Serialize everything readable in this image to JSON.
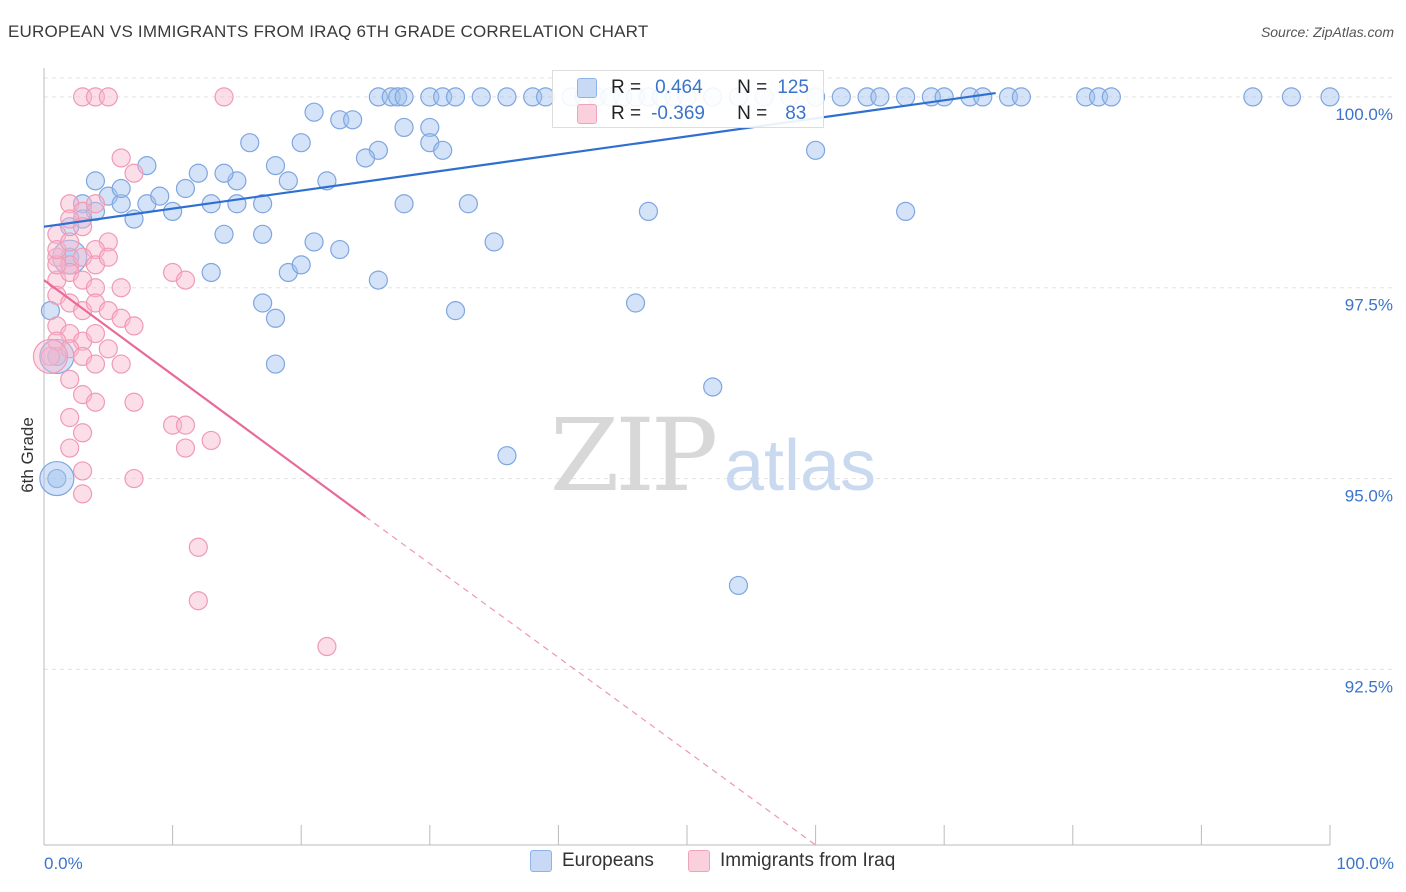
{
  "title": "EUROPEAN VS IMMIGRANTS FROM IRAQ 6TH GRADE CORRELATION CHART",
  "source": "Source: ZipAtlas.com",
  "watermark": {
    "zip": "ZIP",
    "atlas": "atlas"
  },
  "legend_top": [
    {
      "r_label": "R =",
      "r_value": "0.464",
      "n_label": "N =",
      "n_value": "125",
      "color": "#8fb3e8",
      "fill": "#c7d9f5"
    },
    {
      "r_label": "R =",
      "r_value": "-0.369",
      "n_label": "N =",
      "n_value": "83",
      "color": "#f0a3bc",
      "fill": "#fbd0dd"
    }
  ],
  "legend_bottom": [
    {
      "label": "Europeans",
      "color": "#8fb3e8",
      "fill": "#c7d9f5"
    },
    {
      "label": "Immigrants from Iraq",
      "color": "#f0a3bc",
      "fill": "#fbd0dd"
    }
  ],
  "chart_data": {
    "type": "scatter",
    "title": "EUROPEAN VS IMMIGRANTS FROM IRAQ 6TH GRADE CORRELATION CHART",
    "xlabel": "",
    "ylabel": "6th Grade",
    "xlim": [
      0,
      100
    ],
    "ylim": [
      90.2,
      100.3
    ],
    "x_tick_labels": [
      "0.0%",
      "100.0%"
    ],
    "y_ticks": [
      92.5,
      95.0,
      97.5,
      100.0
    ],
    "y_tick_labels": [
      "92.5%",
      "95.0%",
      "97.5%",
      "100.0%"
    ],
    "grid": true,
    "series": [
      {
        "name": "Europeans",
        "stroke": "#7ea6e0",
        "fill": "rgba(160,192,238,0.45)",
        "trend": {
          "x": [
            0,
            74
          ],
          "y": [
            98.3,
            100.05
          ],
          "color": "#2f6fd1",
          "dashed_to": null
        },
        "points": [
          [
            26,
            100
          ],
          [
            27,
            100
          ],
          [
            27.5,
            100
          ],
          [
            28,
            100
          ],
          [
            30,
            100
          ],
          [
            31,
            100
          ],
          [
            32,
            100
          ],
          [
            34,
            100
          ],
          [
            36,
            100
          ],
          [
            38,
            100
          ],
          [
            39,
            100
          ],
          [
            41,
            100
          ],
          [
            42,
            100
          ],
          [
            43,
            100
          ],
          [
            44,
            100
          ],
          [
            45,
            100
          ],
          [
            46,
            100
          ],
          [
            47,
            100
          ],
          [
            48,
            100
          ],
          [
            49,
            100
          ],
          [
            50,
            100
          ],
          [
            52,
            100
          ],
          [
            54,
            100
          ],
          [
            56,
            100
          ],
          [
            58,
            100
          ],
          [
            60,
            100
          ],
          [
            62,
            100
          ],
          [
            64,
            100
          ],
          [
            65,
            100
          ],
          [
            67,
            100
          ],
          [
            69,
            100
          ],
          [
            70,
            100
          ],
          [
            72,
            100
          ],
          [
            73,
            100
          ],
          [
            75,
            100
          ],
          [
            76,
            100
          ],
          [
            81,
            100
          ],
          [
            82,
            100
          ],
          [
            83,
            100
          ],
          [
            94,
            100
          ],
          [
            97,
            100
          ],
          [
            100,
            100
          ],
          [
            21,
            99.8
          ],
          [
            23,
            99.7
          ],
          [
            24,
            99.7
          ],
          [
            28,
            99.6
          ],
          [
            30,
            99.6
          ],
          [
            16,
            99.4
          ],
          [
            20,
            99.4
          ],
          [
            26,
            99.3
          ],
          [
            30,
            99.4
          ],
          [
            31,
            99.3
          ],
          [
            25,
            99.2
          ],
          [
            60,
            99.3
          ],
          [
            8,
            99.1
          ],
          [
            12,
            99.0
          ],
          [
            15,
            98.9
          ],
          [
            19,
            98.9
          ],
          [
            22,
            98.9
          ],
          [
            14,
            99.0
          ],
          [
            18,
            99.1
          ],
          [
            4,
            98.9
          ],
          [
            5,
            98.7
          ],
          [
            8,
            98.6
          ],
          [
            9,
            98.7
          ],
          [
            10,
            98.5
          ],
          [
            11,
            98.8
          ],
          [
            13,
            98.6
          ],
          [
            15,
            98.6
          ],
          [
            17,
            98.6
          ],
          [
            3,
            98.6
          ],
          [
            4,
            98.5
          ],
          [
            6,
            98.6
          ],
          [
            7,
            98.4
          ],
          [
            2,
            98.3
          ],
          [
            3,
            98.4
          ],
          [
            28,
            98.6
          ],
          [
            33,
            98.6
          ],
          [
            47,
            98.5
          ],
          [
            67,
            98.5
          ],
          [
            6,
            98.8
          ],
          [
            2,
            97.9
          ],
          [
            14,
            98.2
          ],
          [
            17,
            98.2
          ],
          [
            21,
            98.1
          ],
          [
            23,
            98.0
          ],
          [
            35,
            98.1
          ],
          [
            13,
            97.7
          ],
          [
            19,
            97.7
          ],
          [
            20,
            97.8
          ],
          [
            26,
            97.6
          ],
          [
            17,
            97.3
          ],
          [
            18,
            97.1
          ],
          [
            32,
            97.2
          ],
          [
            46,
            97.3
          ],
          [
            18,
            96.5
          ],
          [
            52,
            96.2
          ],
          [
            36,
            95.3
          ],
          [
            54,
            93.6
          ],
          [
            1,
            95.0
          ],
          [
            1,
            96.6
          ],
          [
            0.5,
            97.2
          ]
        ],
        "big_points": [
          [
            1,
            95.0
          ],
          [
            1,
            96.6
          ],
          [
            2,
            97.9
          ]
        ]
      },
      {
        "name": "Immigrants from Iraq",
        "stroke": "#f09ab5",
        "fill": "rgba(248,182,204,0.45)",
        "trend": {
          "x": [
            0,
            25
          ],
          "y": [
            97.6,
            94.5
          ],
          "color": "#e8699a",
          "dashed_to": [
            60,
            90.2
          ]
        },
        "points": [
          [
            3,
            100
          ],
          [
            4,
            100
          ],
          [
            5,
            100
          ],
          [
            14,
            100
          ],
          [
            6,
            99.2
          ],
          [
            7,
            99.0
          ],
          [
            2,
            98.6
          ],
          [
            3,
            98.5
          ],
          [
            4,
            98.6
          ],
          [
            2,
            98.4
          ],
          [
            3,
            98.3
          ],
          [
            1,
            98.2
          ],
          [
            5,
            98.1
          ],
          [
            4,
            98.0
          ],
          [
            1,
            97.9
          ],
          [
            2,
            97.8
          ],
          [
            3,
            97.9
          ],
          [
            4,
            97.8
          ],
          [
            5,
            97.9
          ],
          [
            1,
            97.6
          ],
          [
            2,
            97.7
          ],
          [
            3,
            97.6
          ],
          [
            4,
            97.5
          ],
          [
            6,
            97.5
          ],
          [
            10,
            97.7
          ],
          [
            11,
            97.6
          ],
          [
            1,
            97.4
          ],
          [
            2,
            97.3
          ],
          [
            3,
            97.2
          ],
          [
            4,
            97.3
          ],
          [
            5,
            97.2
          ],
          [
            6,
            97.1
          ],
          [
            7,
            97.0
          ],
          [
            1,
            97.0
          ],
          [
            2,
            96.9
          ],
          [
            3,
            96.8
          ],
          [
            4,
            96.9
          ],
          [
            5,
            96.7
          ],
          [
            1,
            96.8
          ],
          [
            2,
            96.7
          ],
          [
            3,
            96.6
          ],
          [
            4,
            96.5
          ],
          [
            6,
            96.5
          ],
          [
            2,
            96.3
          ],
          [
            3,
            96.1
          ],
          [
            4,
            96.0
          ],
          [
            7,
            96.0
          ],
          [
            2,
            95.8
          ],
          [
            3,
            95.6
          ],
          [
            10,
            95.7
          ],
          [
            11,
            95.7
          ],
          [
            2,
            95.4
          ],
          [
            3,
            95.1
          ],
          [
            7,
            95.0
          ],
          [
            3,
            94.8
          ],
          [
            11,
            95.4
          ],
          [
            13,
            95.5
          ],
          [
            12,
            94.1
          ],
          [
            12,
            93.4
          ],
          [
            22,
            92.8
          ],
          [
            0.5,
            96.6
          ],
          [
            1,
            97.8
          ],
          [
            1,
            98.0
          ],
          [
            2,
            98.1
          ]
        ],
        "big_points": [
          [
            0.5,
            96.6
          ]
        ]
      }
    ]
  }
}
